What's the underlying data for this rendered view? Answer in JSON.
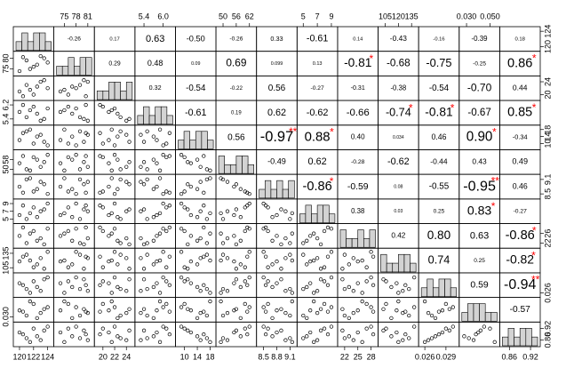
{
  "chart_data": {
    "type": "correlation_matrix",
    "point_color": "#000000",
    "hist_color": "#d3d3d3",
    "star_color": "#ff0000",
    "variables": [
      {
        "xticks": [
          120,
          122,
          124
        ],
        "yticks": [
          120,
          124
        ],
        "lim": [
          119.5,
          124.5
        ],
        "observations": [
          120,
          121,
          122,
          123,
          124,
          122.5,
          121.5,
          123.5,
          120.5
        ]
      },
      {
        "xticks": [
          75,
          78,
          81
        ],
        "yticks": [
          75,
          80
        ],
        "lim": [
          73,
          82
        ],
        "observations": [
          74,
          79,
          76,
          81,
          78,
          77,
          75,
          80,
          80.5
        ]
      },
      {
        "xticks": [
          20,
          22,
          24
        ],
        "yticks": [
          20,
          24
        ],
        "lim": [
          19,
          25
        ],
        "observations": [
          21,
          23,
          20,
          24,
          22,
          22.5,
          21.5,
          24.5,
          19.5
        ]
      },
      {
        "xticks": [
          5.4,
          {
            "value": 6,
            "label": "6.0"
          }
        ],
        "yticks": [
          5.4,
          6.2
        ],
        "lim": [
          5.2,
          6.3
        ],
        "observations": [
          5.8,
          5.5,
          6.1,
          5.3,
          6,
          5.7,
          5.9,
          5.4,
          6.2
        ]
      },
      {
        "xticks": [
          10,
          14,
          18
        ],
        "yticks": [
          10,
          14,
          18
        ],
        "lim": [
          8,
          19
        ],
        "observations": [
          12,
          17,
          10,
          15,
          9,
          14,
          18,
          11,
          16
        ]
      },
      {
        "xticks": [
          50,
          56,
          62
        ],
        "yticks": [
          50,
          58
        ],
        "lim": [
          48,
          64
        ],
        "observations": [
          55,
          50,
          60,
          52,
          62,
          58,
          49,
          56,
          61
        ]
      },
      {
        "xticks": [
          8.5,
          8.8,
          9.1
        ],
        "yticks": [
          8.5,
          9.1
        ],
        "lim": [
          8.4,
          9.2
        ],
        "observations": [
          8.8,
          9.1,
          8.6,
          9,
          8.5,
          8.7,
          9.15,
          8.9,
          8.55
        ]
      },
      {
        "xticks": [
          5,
          7,
          9
        ],
        "yticks": [
          5,
          7,
          9
        ],
        "lim": [
          4.5,
          9.5
        ],
        "observations": [
          6,
          5,
          8,
          7,
          9,
          5.5,
          6.5,
          7.5,
          8.5
        ]
      },
      {
        "xticks": [
          22,
          25,
          28
        ],
        "yticks": [
          22,
          26
        ],
        "lim": [
          21,
          29
        ],
        "observations": [
          25,
          22,
          27,
          24,
          28,
          23,
          26,
          21.5,
          28.5
        ]
      },
      {
        "xticks": [
          105,
          120,
          135
        ],
        "yticks": [
          105,
          135
        ],
        "lim": [
          100,
          140
        ],
        "observations": [
          118,
          132,
          106,
          125,
          138,
          112,
          120,
          103,
          128
        ]
      },
      {
        "xticks": [
          0.026,
          0.029
        ],
        "yticks": [
          0.026
        ],
        "lim": [
          0.0255,
          0.0305
        ],
        "observations": [
          0.0285,
          0.027,
          0.029,
          0.0265,
          0.03,
          0.0275,
          0.026,
          0.0295,
          0.028
        ]
      },
      {
        "xticks": [
          {
            "value": 0.03,
            "label": "0.030"
          },
          {
            "value": 0.05,
            "label": "0.050"
          }
        ],
        "yticks": [
          {
            "value": 0.03,
            "label": "0.030"
          }
        ],
        "lim": [
          0.026,
          0.056
        ],
        "observations": [
          0.04,
          0.032,
          0.05,
          0.036,
          0.045,
          0.028,
          0.054,
          0.042,
          0.038
        ]
      },
      {
        "xticks": [
          0.86,
          0.92
        ],
        "yticks": [
          0.86,
          0.92
        ],
        "lim": [
          0.84,
          0.94
        ],
        "observations": [
          0.9,
          0.87,
          0.92,
          0.86,
          0.93,
          0.88,
          0.85,
          0.91,
          0.89
        ]
      }
    ],
    "correlations": [
      [
        -0.26,
        0.17,
        0.63,
        {
          "value": -0.5,
          "label": "-0.50"
        },
        -0.26,
        0.33,
        -0.61,
        0.14,
        -0.43,
        -0.16,
        -0.39,
        0.18
      ],
      [
        0.29,
        0.48,
        0.09,
        0.69,
        0.099,
        0.13,
        -0.81,
        -0.68,
        -0.75,
        -0.25,
        0.86
      ],
      [
        0.32,
        -0.54,
        -0.22,
        0.56,
        -0.27,
        -0.31,
        -0.38,
        -0.54,
        {
          "value": -0.7,
          "label": "-0.70"
        },
        0.44
      ],
      [
        -0.61,
        0.19,
        0.62,
        -0.62,
        -0.66,
        -0.74,
        -0.81,
        -0.67,
        0.85
      ],
      [
        0.56,
        -0.97,
        0.88,
        {
          "value": 0.4,
          "label": "0.40"
        },
        0.034,
        0.46,
        {
          "value": 0.9,
          "label": "0.90"
        },
        -0.34
      ],
      [
        -0.49,
        0.62,
        -0.28,
        -0.62,
        -0.44,
        0.43,
        0.49
      ],
      [
        -0.86,
        -0.59,
        0.08,
        -0.55,
        -0.95,
        0.46
      ],
      [
        0.38,
        0.03,
        0.25,
        0.83,
        -0.27
      ],
      [
        0.42,
        {
          "value": 0.8,
          "label": "0.80"
        },
        0.63,
        -0.86
      ],
      [
        0.74,
        0.25,
        -0.82
      ],
      [
        0.59,
        -0.94
      ],
      [
        -0.57
      ]
    ],
    "stars": [
      [
        null,
        null,
        null,
        null,
        null,
        null,
        null,
        null,
        null,
        null,
        null,
        null
      ],
      [
        null,
        null,
        null,
        null,
        null,
        null,
        "*",
        null,
        null,
        null,
        "*"
      ],
      [
        null,
        null,
        null,
        null,
        null,
        null,
        null,
        null,
        null,
        null
      ],
      [
        null,
        null,
        null,
        null,
        null,
        "*",
        "*",
        null,
        "*"
      ],
      [
        null,
        "**",
        "*",
        null,
        null,
        null,
        "*",
        null
      ],
      [
        null,
        null,
        null,
        null,
        null,
        null,
        null
      ],
      [
        "*",
        null,
        null,
        null,
        "**",
        null
      ],
      [
        null,
        null,
        null,
        "*",
        null
      ],
      [
        null,
        null,
        null,
        "*"
      ],
      [
        null,
        null,
        "*"
      ],
      [
        null,
        "**"
      ],
      [
        null
      ]
    ]
  }
}
